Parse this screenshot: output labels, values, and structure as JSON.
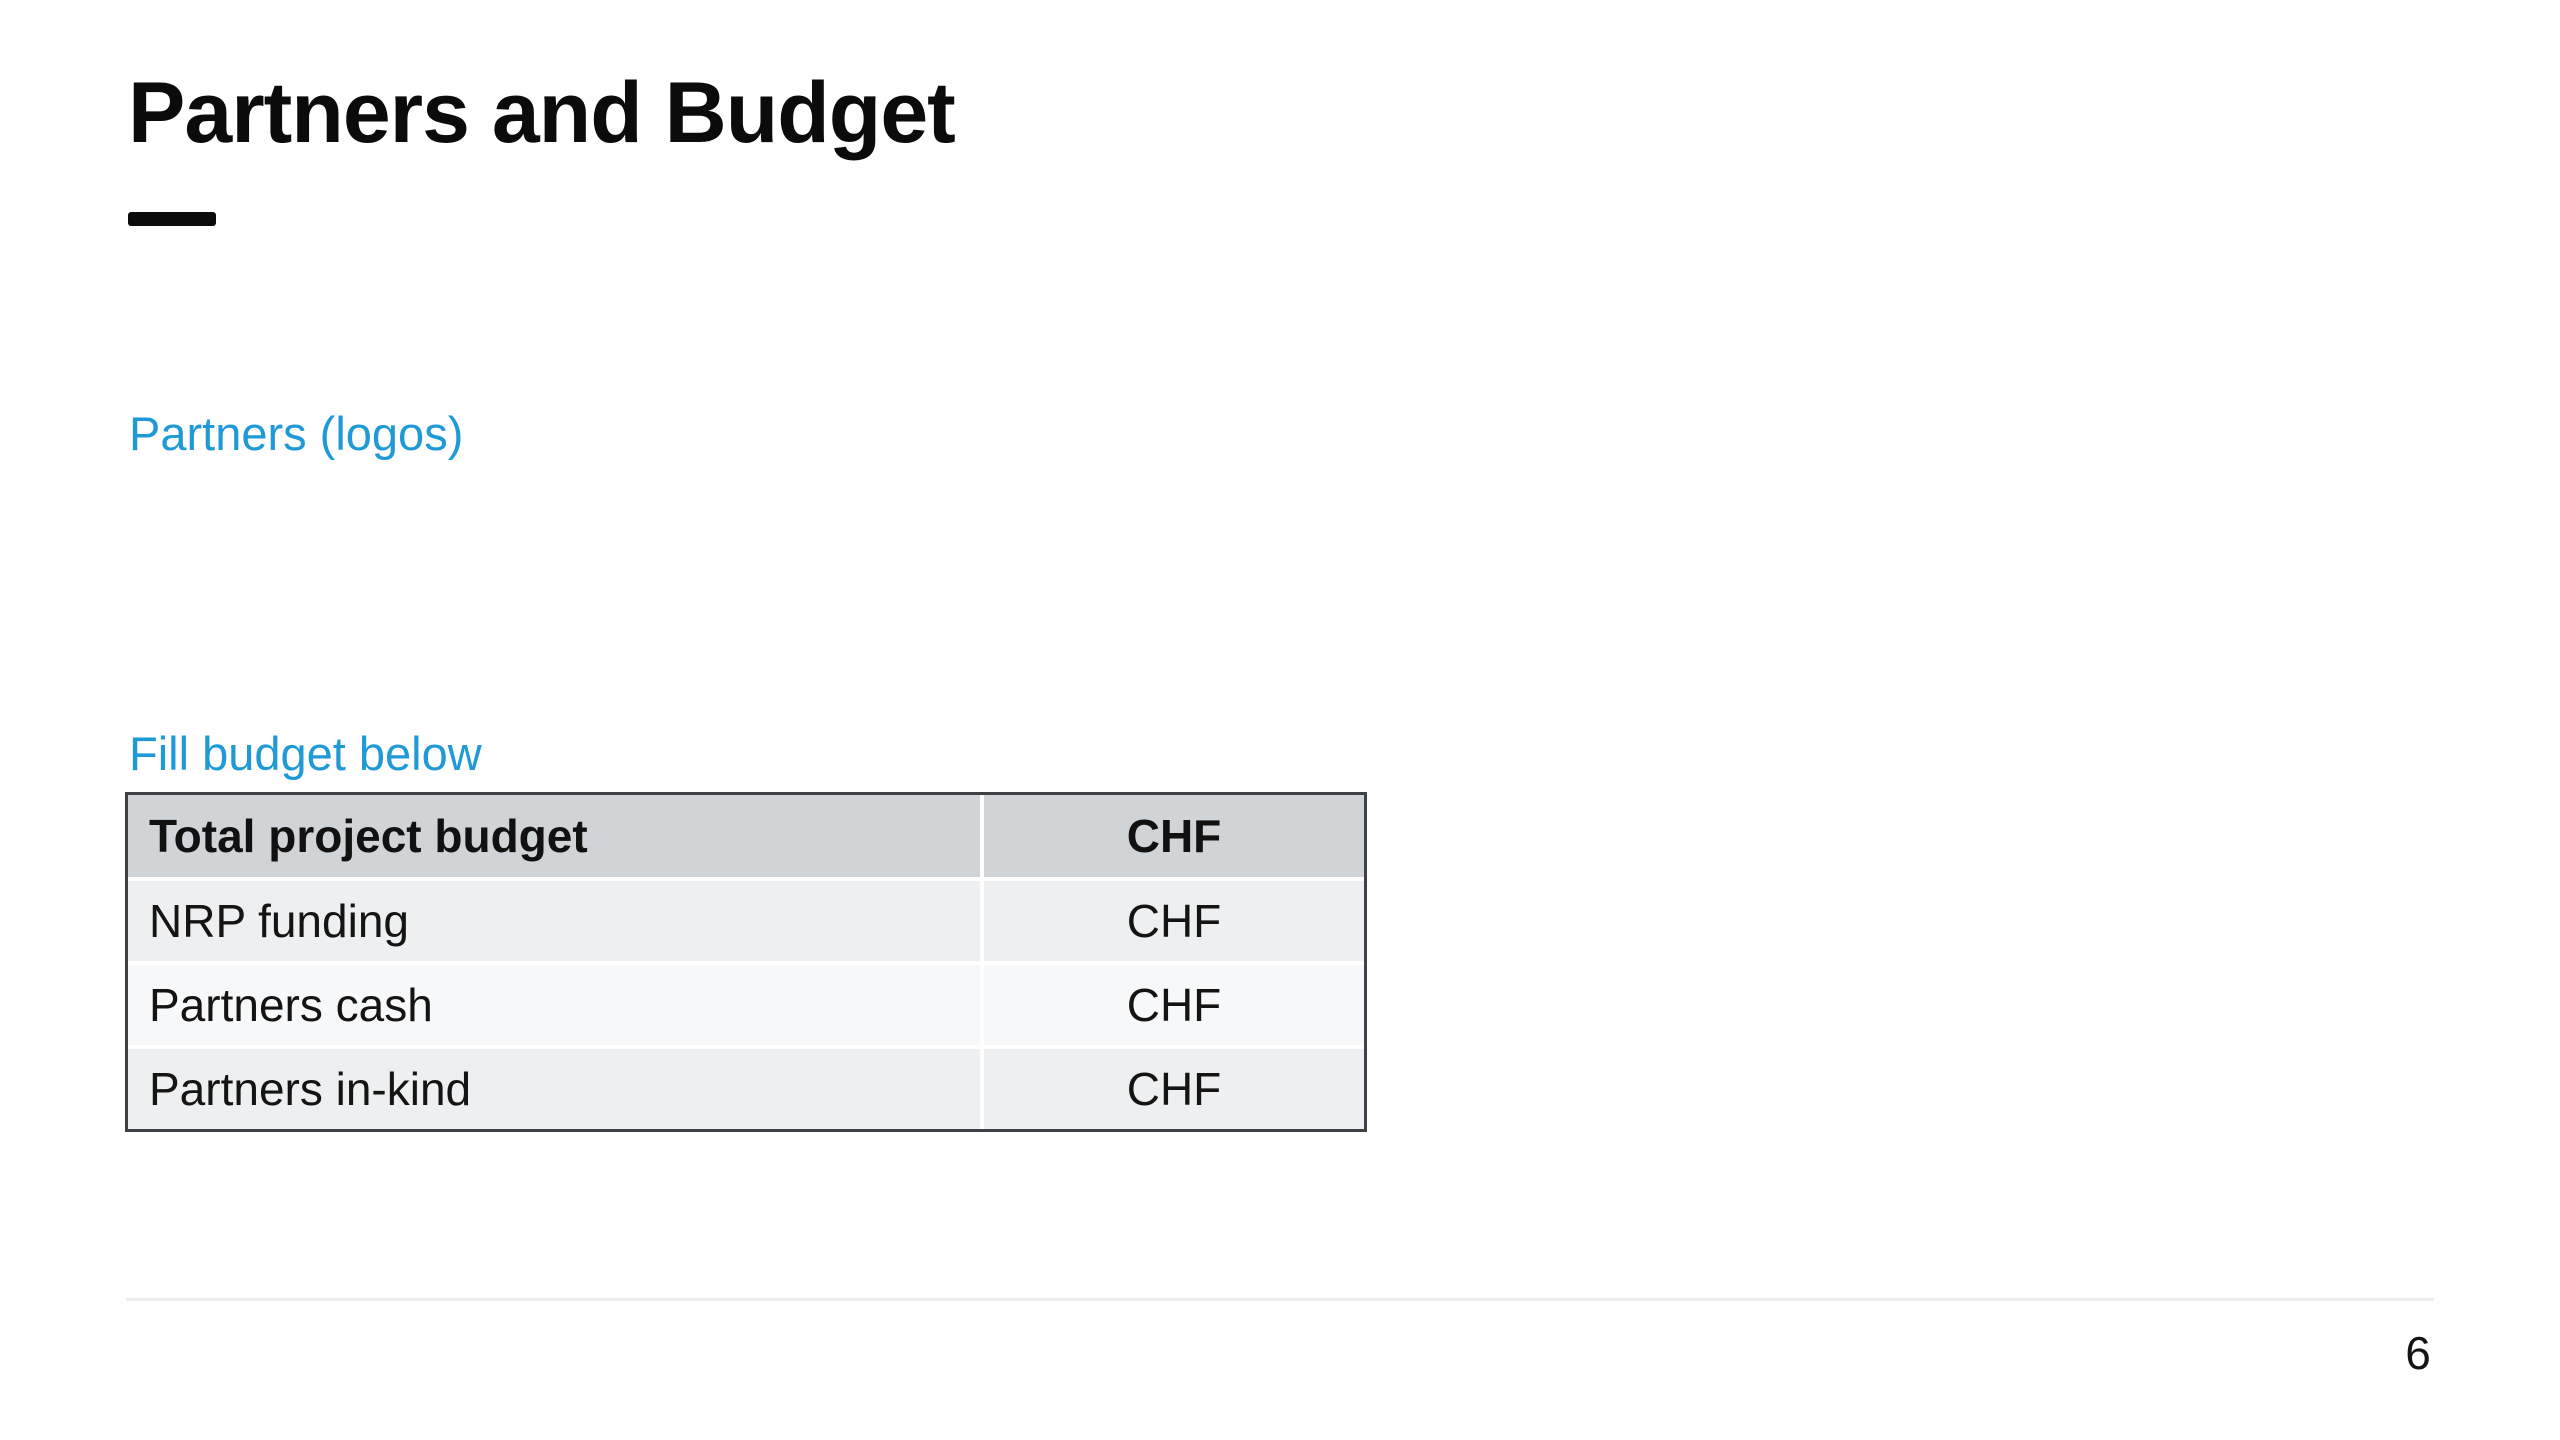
{
  "slide": {
    "title": "Partners and Budget",
    "page_number": "6"
  },
  "placeholders": {
    "partners_label": "Partners (logos)",
    "budget_label": "Fill budget below"
  },
  "budget_table": {
    "columns": [
      "Total project budget",
      "CHF"
    ],
    "rows": [
      {
        "label": "NRP funding",
        "value": "CHF"
      },
      {
        "label": "Partners cash",
        "value": "CHF"
      },
      {
        "label": "Partners in-kind",
        "value": "CHF"
      }
    ]
  },
  "colors": {
    "accent_blue": "#1f9ad6",
    "title_black": "#0b0b0b",
    "table_border": "#3e4246",
    "table_header_bg": "#d1d4d7",
    "table_row_odd_bg": "#edeff1",
    "table_row_even_bg": "#f7f8f9",
    "footer_line": "#ededed"
  }
}
